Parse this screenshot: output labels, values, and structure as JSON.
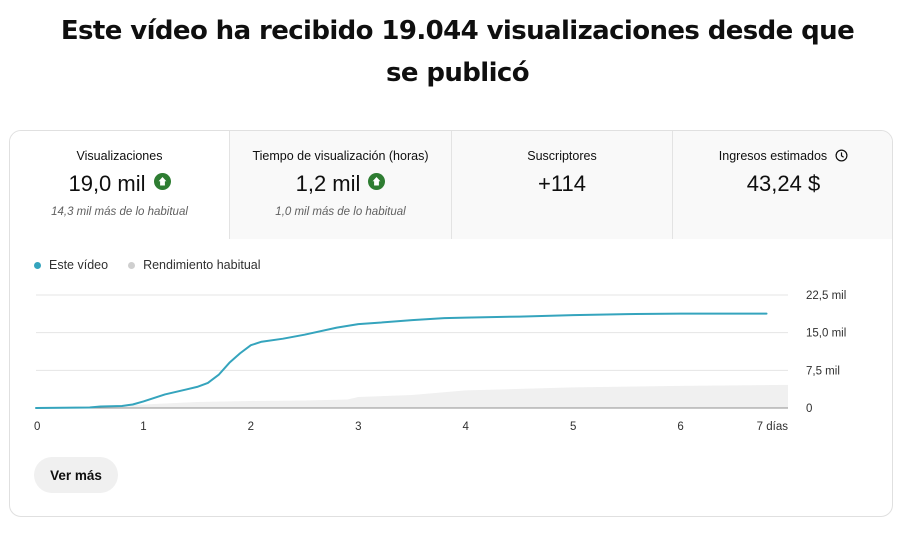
{
  "headline": "Este vídeo ha recibido 19.044 visualizaciones desde que se publicó",
  "metrics": [
    {
      "label": "Visualizaciones",
      "value": "19,0 mil",
      "note": "14,3 mil más de lo habitual",
      "trend": "up"
    },
    {
      "label": "Tiempo de visualización (horas)",
      "value": "1,2 mil",
      "note": "1,0 mil más de lo habitual",
      "trend": "up"
    },
    {
      "label": "Suscriptores",
      "value": "+114",
      "note": ""
    },
    {
      "label": "Ingresos estimados",
      "value": "43,24 $",
      "note": "",
      "icon": "clock-icon"
    }
  ],
  "legend": {
    "this_video": "Este vídeo",
    "typical": "Rendimiento habitual"
  },
  "colors": {
    "this_video": "#35a4bd",
    "typical": "#f0f0f0",
    "up": "#2e7d32"
  },
  "chart_data": {
    "type": "line",
    "x_ticks": [
      "0",
      "1",
      "2",
      "3",
      "4",
      "5",
      "6",
      "7 días"
    ],
    "y_ticks": [
      "0",
      "7,5 mil",
      "15,0 mil",
      "22,5 mil"
    ],
    "ylim": [
      0,
      22500
    ],
    "xlim": [
      0,
      7
    ],
    "series": [
      {
        "name": "Este vídeo",
        "x": [
          0,
          0.5,
          0.6,
          0.8,
          0.9,
          1.0,
          1.1,
          1.2,
          1.3,
          1.4,
          1.5,
          1.6,
          1.7,
          1.8,
          1.9,
          2.0,
          2.1,
          2.3,
          2.5,
          2.8,
          3.0,
          3.2,
          3.5,
          3.8,
          4.0,
          4.5,
          5.0,
          5.5,
          6.0,
          6.5,
          6.8
        ],
        "y": [
          0,
          100,
          300,
          400,
          700,
          1300,
          2000,
          2700,
          3200,
          3700,
          4200,
          5000,
          6600,
          9000,
          10900,
          12500,
          13200,
          13800,
          14600,
          16000,
          16700,
          17000,
          17500,
          17900,
          18000,
          18200,
          18500,
          18700,
          18800,
          18800,
          18800
        ]
      },
      {
        "name": "Rendimiento habitual",
        "x": [
          0,
          1,
          1.5,
          2,
          2.5,
          2.9,
          3.0,
          3.5,
          4.0,
          4.5,
          5.0,
          6.0,
          7.0
        ],
        "y": [
          0,
          700,
          1200,
          1400,
          1500,
          1700,
          2200,
          2600,
          3500,
          3800,
          4100,
          4400,
          4600
        ]
      }
    ]
  },
  "see_more": "Ver más"
}
